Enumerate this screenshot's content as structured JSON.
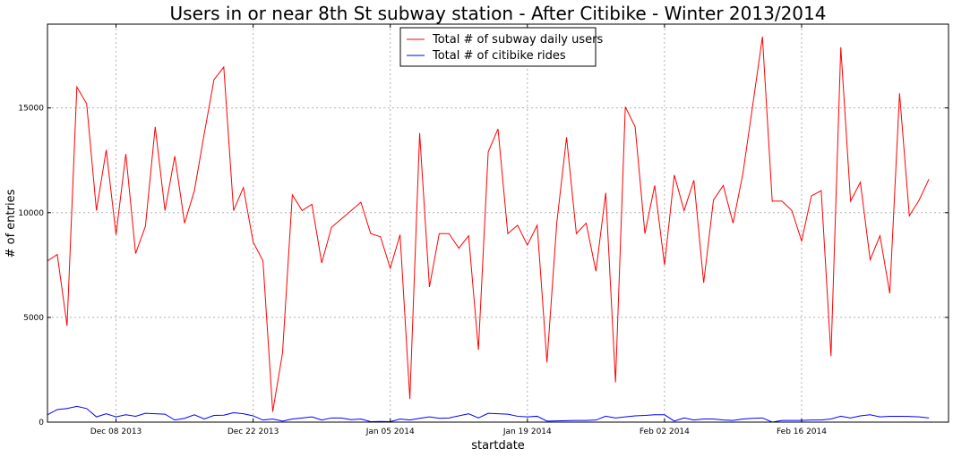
{
  "chart_data": {
    "type": "line",
    "title": "Users in or near 8th St subway station - After Citibike - Winter 2013/2014",
    "xlabel": "startdate",
    "ylabel": "# of entries",
    "ylim": [
      0,
      19000
    ],
    "yticks": [
      0,
      5000,
      10000,
      15000
    ],
    "ytick_labels": [
      "0",
      "5000",
      "10000",
      "15000"
    ],
    "xlim": [
      "2013-12-01",
      "2014-03-03"
    ],
    "xticks": [
      {
        "date": "2013-12-08",
        "label": "Dec 08 2013"
      },
      {
        "date": "2013-12-22",
        "label": "Dec 22 2013"
      },
      {
        "date": "2014-01-05",
        "label": "Jan 05 2014"
      },
      {
        "date": "2014-01-19",
        "label": "Jan 19 2014"
      },
      {
        "date": "2014-02-02",
        "label": "Feb 02 2014"
      },
      {
        "date": "2014-02-16",
        "label": "Feb 16 2014"
      }
    ],
    "grid": true,
    "legend_position": "top-center",
    "x": [
      "2013-12-01",
      "2013-12-02",
      "2013-12-03",
      "2013-12-04",
      "2013-12-05",
      "2013-12-06",
      "2013-12-07",
      "2013-12-08",
      "2013-12-09",
      "2013-12-10",
      "2013-12-11",
      "2013-12-12",
      "2013-12-13",
      "2013-12-14",
      "2013-12-15",
      "2013-12-16",
      "2013-12-17",
      "2013-12-18",
      "2013-12-19",
      "2013-12-20",
      "2013-12-21",
      "2013-12-22",
      "2013-12-23",
      "2013-12-24",
      "2013-12-25",
      "2013-12-26",
      "2013-12-27",
      "2013-12-28",
      "2013-12-29",
      "2013-12-30",
      "2013-12-31",
      "2014-01-01",
      "2014-01-02",
      "2014-01-03",
      "2014-01-04",
      "2014-01-05",
      "2014-01-06",
      "2014-01-07",
      "2014-01-08",
      "2014-01-09",
      "2014-01-10",
      "2014-01-11",
      "2014-01-12",
      "2014-01-13",
      "2014-01-14",
      "2014-01-15",
      "2014-01-16",
      "2014-01-17",
      "2014-01-18",
      "2014-01-19",
      "2014-01-20",
      "2014-01-21",
      "2014-01-22",
      "2014-01-23",
      "2014-01-24",
      "2014-01-25",
      "2014-01-26",
      "2014-01-27",
      "2014-01-28",
      "2014-01-29",
      "2014-01-30",
      "2014-01-31",
      "2014-02-01",
      "2014-02-02",
      "2014-02-03",
      "2014-02-04",
      "2014-02-05",
      "2014-02-06",
      "2014-02-07",
      "2014-02-08",
      "2014-02-09",
      "2014-02-10",
      "2014-02-11",
      "2014-02-12",
      "2014-02-13",
      "2014-02-14",
      "2014-02-15",
      "2014-02-16",
      "2014-02-17",
      "2014-02-18",
      "2014-02-19",
      "2014-02-20",
      "2014-02-21",
      "2014-02-22",
      "2014-02-23",
      "2014-02-24",
      "2014-02-25",
      "2014-02-26",
      "2014-02-27",
      "2014-02-28",
      "2014-03-01",
      "2014-03-02",
      "2014-03-03"
    ],
    "series": [
      {
        "name": "Total # of subway daily users",
        "color": "#ff0000",
        "values": [
          7700,
          8000,
          4600,
          16000,
          15200,
          10100,
          13000,
          8950,
          12800,
          8050,
          9350,
          14100,
          10100,
          12700,
          9500,
          11050,
          13750,
          16350,
          16950,
          10100,
          11200,
          8600,
          7700,
          500,
          3300,
          10850,
          10100,
          10400,
          7600,
          9300,
          9700,
          10100,
          10500,
          9000,
          8850,
          7350,
          8950,
          1100,
          13800,
          6450,
          9000,
          9000,
          8300,
          8900,
          3450,
          12900,
          14000,
          9000,
          9400,
          8450,
          9400,
          2850,
          9500,
          13600,
          9000,
          9500,
          7200,
          10950,
          1900,
          15050,
          14100,
          9000,
          11300,
          7500,
          11800,
          10100,
          11550,
          6650,
          10600,
          11300,
          9500,
          11850,
          15100,
          18400,
          10550,
          10550,
          10100,
          8650,
          10800,
          11050,
          3150,
          17900,
          10550,
          11450,
          7750,
          8900,
          6150,
          15700,
          9850,
          10600,
          11600,
          null,
          null
        ]
      },
      {
        "name": "Total # of citibike rides",
        "color": "#0000ff",
        "values": [
          350,
          600,
          650,
          750,
          650,
          250,
          400,
          250,
          350,
          280,
          420,
          400,
          380,
          100,
          180,
          350,
          150,
          320,
          330,
          450,
          400,
          300,
          100,
          150,
          50,
          150,
          200,
          250,
          100,
          200,
          200,
          120,
          150,
          20,
          30,
          20,
          150,
          100,
          180,
          250,
          180,
          200,
          300,
          400,
          200,
          420,
          400,
          380,
          280,
          250,
          280,
          50,
          60,
          70,
          80,
          80,
          100,
          280,
          200,
          250,
          300,
          320,
          350,
          350,
          50,
          200,
          100,
          150,
          150,
          100,
          80,
          150,
          180,
          200,
          0,
          80,
          80,
          80,
          100,
          100,
          150,
          280,
          200,
          300,
          350,
          250,
          280,
          280,
          270,
          250,
          200,
          null,
          null
        ]
      }
    ]
  }
}
